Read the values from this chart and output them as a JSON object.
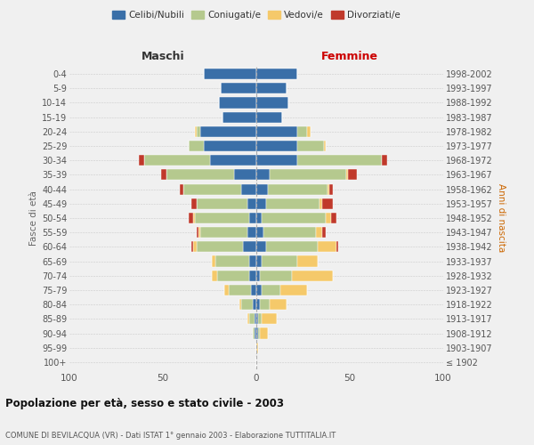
{
  "age_groups": [
    "100+",
    "95-99",
    "90-94",
    "85-89",
    "80-84",
    "75-79",
    "70-74",
    "65-69",
    "60-64",
    "55-59",
    "50-54",
    "45-49",
    "40-44",
    "35-39",
    "30-34",
    "25-29",
    "20-24",
    "15-19",
    "10-14",
    "5-9",
    "0-4"
  ],
  "birth_years": [
    "≤ 1902",
    "1903-1907",
    "1908-1912",
    "1913-1917",
    "1918-1922",
    "1923-1927",
    "1928-1932",
    "1933-1937",
    "1938-1942",
    "1943-1947",
    "1948-1952",
    "1953-1957",
    "1958-1962",
    "1963-1967",
    "1968-1972",
    "1973-1977",
    "1978-1982",
    "1983-1987",
    "1988-1992",
    "1993-1997",
    "1998-2002"
  ],
  "colors": {
    "celibe": "#3a6fa8",
    "coniugato": "#b5c98e",
    "vedovo": "#f5c96a",
    "divorziato": "#c0392b"
  },
  "males": {
    "celibe": [
      0,
      0,
      1,
      1,
      2,
      3,
      4,
      4,
      7,
      5,
      4,
      5,
      8,
      12,
      25,
      28,
      30,
      18,
      20,
      19,
      28
    ],
    "coniugato": [
      0,
      0,
      1,
      3,
      6,
      12,
      17,
      18,
      25,
      25,
      29,
      27,
      31,
      36,
      35,
      8,
      2,
      0,
      0,
      0,
      0
    ],
    "vedovo": [
      0,
      0,
      0,
      1,
      1,
      2,
      3,
      2,
      2,
      1,
      1,
      0,
      0,
      0,
      0,
      0,
      1,
      0,
      0,
      0,
      0
    ],
    "divorziato": [
      0,
      0,
      0,
      0,
      0,
      0,
      0,
      0,
      1,
      1,
      2,
      3,
      2,
      3,
      3,
      0,
      0,
      0,
      0,
      0,
      0
    ]
  },
  "females": {
    "celibe": [
      0,
      0,
      1,
      1,
      2,
      3,
      2,
      3,
      5,
      4,
      3,
      5,
      6,
      7,
      22,
      22,
      22,
      14,
      17,
      16,
      22
    ],
    "coniugato": [
      0,
      0,
      1,
      2,
      5,
      10,
      17,
      19,
      28,
      28,
      34,
      29,
      32,
      41,
      45,
      14,
      5,
      0,
      0,
      0,
      0
    ],
    "vedovo": [
      0,
      1,
      4,
      8,
      9,
      14,
      22,
      11,
      10,
      3,
      3,
      1,
      1,
      1,
      0,
      1,
      2,
      0,
      0,
      0,
      0
    ],
    "divorziato": [
      0,
      0,
      0,
      0,
      0,
      0,
      0,
      0,
      1,
      2,
      3,
      6,
      2,
      5,
      3,
      0,
      0,
      0,
      0,
      0,
      0
    ]
  },
  "title": "Popolazione per età, sesso e stato civile - 2003",
  "subtitle": "COMUNE DI BEVILACQUA (VR) - Dati ISTAT 1° gennaio 2003 - Elaborazione TUTTITALIA.IT",
  "xlabel_left": "Maschi",
  "xlabel_right": "Femmine",
  "ylabel_left": "Fasce di età",
  "ylabel_right": "Anni di nascita",
  "xlim": 100,
  "legend_labels": [
    "Celibi/Nubili",
    "Coniugati/e",
    "Vedovi/e",
    "Divorziati/e"
  ],
  "bg_color": "#f0f0f0",
  "bar_height": 0.75
}
